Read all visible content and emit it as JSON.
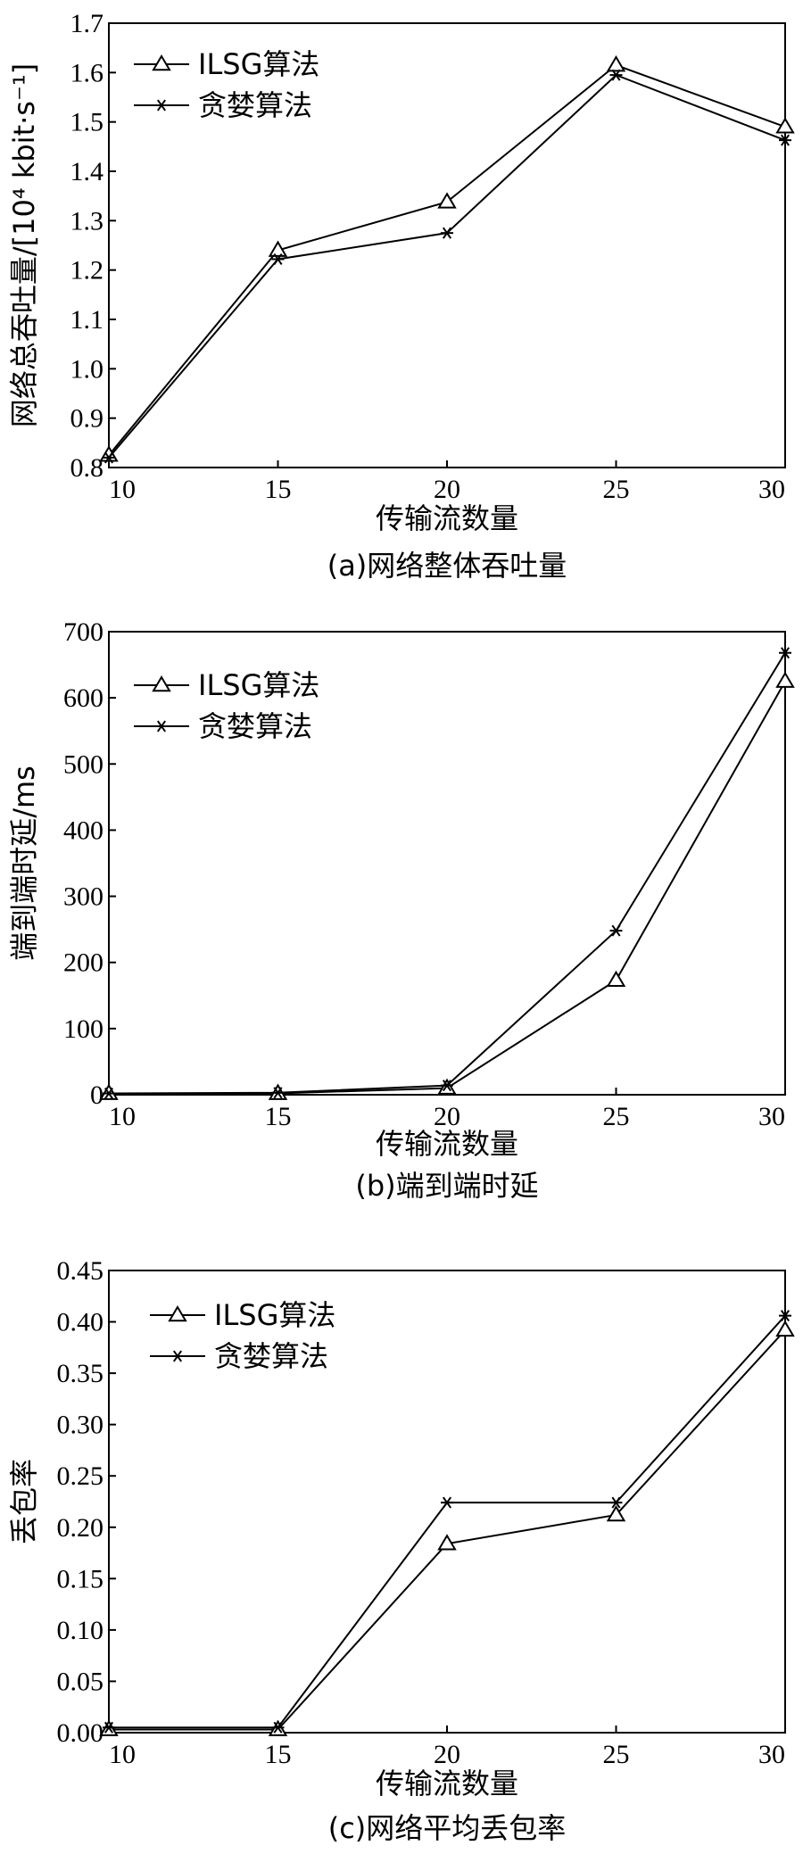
{
  "chart_data": [
    {
      "type": "line",
      "caption": "(a)网络整体吞吐量",
      "xlabel": "传输流数量",
      "ylabel": "网络总吞吐量/[10⁴ kbit·s⁻¹]",
      "x": [
        10,
        15,
        20,
        25,
        30
      ],
      "xticks": [
        "10",
        "15",
        "20",
        "25",
        "30"
      ],
      "ylim": [
        0.8,
        1.7
      ],
      "yticks": [
        "0.8",
        "0.9",
        "1.0",
        "1.1",
        "1.2",
        "1.3",
        "1.4",
        "1.5",
        "1.6",
        "1.7"
      ],
      "legend_placement": "top-left",
      "series": [
        {
          "name": "ILSG算法",
          "marker": "triangle",
          "values": [
            0.825,
            1.24,
            1.338,
            1.615,
            1.49
          ]
        },
        {
          "name": "贪婪算法",
          "marker": "star",
          "values": [
            0.82,
            1.222,
            1.275,
            1.595,
            1.463
          ]
        }
      ]
    },
    {
      "type": "line",
      "caption": "(b)端到端时延",
      "xlabel": "传输流数量",
      "ylabel": "端到端时延/ms",
      "x": [
        10,
        15,
        20,
        25,
        30
      ],
      "xticks": [
        "10",
        "15",
        "20",
        "25",
        "30"
      ],
      "ylim": [
        0,
        700
      ],
      "yticks": [
        "0",
        "100",
        "200",
        "300",
        "400",
        "500",
        "600",
        "700"
      ],
      "legend_placement": "top-left",
      "series": [
        {
          "name": "ILSG算法",
          "marker": "triangle",
          "values": [
            2,
            2,
            10,
            173,
            625
          ]
        },
        {
          "name": "贪婪算法",
          "marker": "star",
          "values": [
            2,
            3,
            14,
            248,
            668
          ]
        }
      ]
    },
    {
      "type": "line",
      "caption": "(c)网络平均丢包率",
      "xlabel": "传输流数量",
      "ylabel": "丢包率",
      "x": [
        10,
        15,
        20,
        25,
        30
      ],
      "xticks": [
        "10",
        "15",
        "20",
        "25",
        "30"
      ],
      "ylim": [
        0,
        0.45
      ],
      "yticks": [
        "0.00",
        "0.05",
        "0.10",
        "0.15",
        "0.20",
        "0.25",
        "0.30",
        "0.35",
        "0.40",
        "0.45"
      ],
      "legend_placement": "top-left",
      "series": [
        {
          "name": "ILSG算法",
          "marker": "triangle",
          "values": [
            0.003,
            0.003,
            0.184,
            0.212,
            0.392
          ]
        },
        {
          "name": "贪婪算法",
          "marker": "star",
          "values": [
            0.005,
            0.005,
            0.224,
            0.224,
            0.406
          ]
        }
      ]
    }
  ]
}
